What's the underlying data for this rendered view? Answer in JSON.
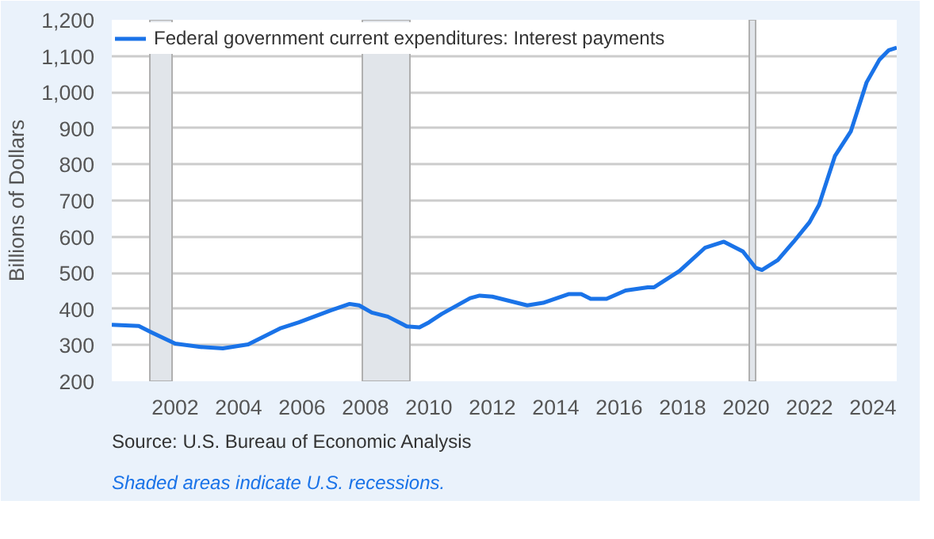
{
  "chart_data": {
    "type": "line",
    "ylabel": "Billions of Dollars",
    "xlim": [
      2000,
      2024.75
    ],
    "xticks": [
      2002,
      2004,
      2006,
      2008,
      2010,
      2012,
      2014,
      2016,
      2018,
      2020,
      2022,
      2024
    ],
    "ylim": [
      200,
      1200
    ],
    "yticks": [
      {
        "value": 200,
        "label": "200"
      },
      {
        "value": 300,
        "label": "300"
      },
      {
        "value": 400,
        "label": "400"
      },
      {
        "value": 500,
        "label": "500"
      },
      {
        "value": 600,
        "label": "600"
      },
      {
        "value": 700,
        "label": "700"
      },
      {
        "value": 800,
        "label": "800"
      },
      {
        "value": 900,
        "label": "900"
      },
      {
        "value": 1000,
        "label": "1,000"
      },
      {
        "value": 1100,
        "label": "1,100"
      },
      {
        "value": 1200,
        "label": "1,200"
      }
    ],
    "series": [
      {
        "name": "Federal government current expenditures: Interest payments",
        "color": "#1a73e8",
        "x": [
          2000.0,
          2000.85,
          2001.26,
          2002.0,
          2002.8,
          2003.5,
          2004.3,
          2005.3,
          2005.9,
          2006.9,
          2007.5,
          2007.8,
          2008.2,
          2008.7,
          2009.3,
          2009.7,
          2010.0,
          2010.4,
          2011.3,
          2011.6,
          2012.0,
          2013.1,
          2013.6,
          2014.4,
          2014.8,
          2015.1,
          2015.6,
          2016.2,
          2016.9,
          2017.1,
          2017.9,
          2018.7,
          2019.3,
          2019.9,
          2020.3,
          2020.5,
          2021.0,
          2021.5,
          2022.0,
          2022.3,
          2022.8,
          2023.3,
          2023.8,
          2024.2,
          2024.5,
          2024.75
        ],
        "values": [
          356,
          353,
          335,
          304,
          295,
          291,
          302,
          346,
          363,
          396,
          414,
          410,
          390,
          379,
          352,
          349,
          363,
          386,
          430,
          437,
          434,
          410,
          417,
          441,
          441,
          428,
          428,
          451,
          460,
          460,
          505,
          569,
          586,
          559,
          514,
          508,
          535,
          586,
          640,
          688,
          823,
          891,
          1027,
          1089,
          1116,
          1123
        ]
      }
    ],
    "bands": [
      {
        "axis": "x",
        "from": 2001.2,
        "to": 2001.9,
        "color": "#e1e5ea"
      },
      {
        "axis": "x",
        "from": 2007.9,
        "to": 2009.4,
        "color": "#e1e5ea"
      },
      {
        "axis": "x",
        "from": 2020.1,
        "to": 2020.3,
        "color": "#e1e5ea"
      }
    ],
    "grid": "y",
    "legend": "top left",
    "line_style": "solid",
    "marker": "none",
    "annotations": [
      "Source: U.S. Bureau of Economic Analysis",
      "Shaded areas indicate U.S. recessions."
    ]
  }
}
